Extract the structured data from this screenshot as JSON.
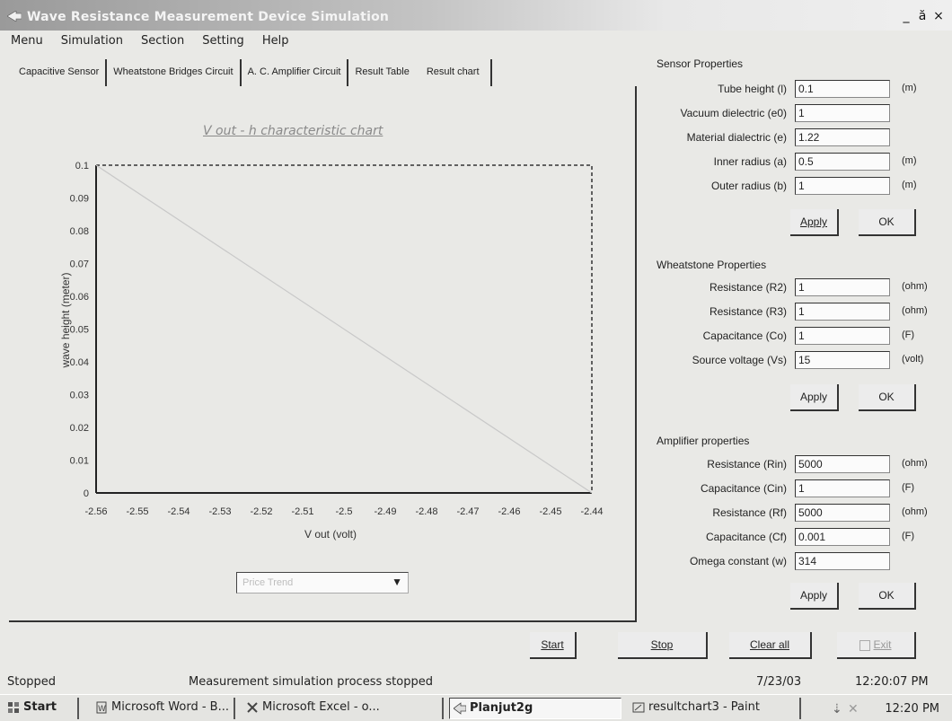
{
  "window": {
    "title": "Wave Resistance Measurement Device Simulation",
    "controls": [
      "_",
      "ă",
      "×"
    ]
  },
  "menu": [
    "Menu",
    "Simulation",
    "Section",
    "Setting",
    "Help"
  ],
  "tabs": [
    "Capacitive Sensor",
    "Wheatstone Bridges Circuit",
    "A. C. Amplifier Circuit",
    "Result Table",
    "Result chart"
  ],
  "chart_data": {
    "type": "line",
    "title": "V out - h characteristic chart",
    "xlabel": "V out (volt)",
    "ylabel": "wave height (meter)",
    "x_ticks": [
      "-2.56",
      "-2.55",
      "-2.54",
      "-2.53",
      "-2.52",
      "-2.51",
      "-2.5",
      "-2.49",
      "-2.48",
      "-2.47",
      "-2.46",
      "-2.45",
      "-2.44"
    ],
    "y_ticks": [
      "0.1",
      "0.09",
      "0.08",
      "0.07",
      "0.06",
      "0.05",
      "0.04",
      "0.03",
      "0.02",
      "0.01",
      "0"
    ],
    "xlim": [
      -2.56,
      -2.44
    ],
    "ylim": [
      0,
      0.1
    ],
    "series": [
      {
        "x": [
          -2.56,
          -2.44
        ],
        "y": [
          0.1,
          0.0
        ]
      }
    ],
    "line_color": "#c8c8c8"
  },
  "chart_dropdown": {
    "value": "Price Trend"
  },
  "sensor": {
    "title": "Sensor Properties",
    "rows": [
      {
        "label": "Tube height (l)",
        "value": "0.1",
        "unit": "(m)"
      },
      {
        "label": "Vacuum dielectric (e0)",
        "value": "1",
        "unit": ""
      },
      {
        "label": "Material dialectric (e)",
        "value": "1.22",
        "unit": ""
      },
      {
        "label": "Inner radius (a)",
        "value": "0.5",
        "unit": "(m)"
      },
      {
        "label": "Outer radius (b)",
        "value": "1",
        "unit": "(m)"
      }
    ],
    "apply": "Apply",
    "ok": "OK"
  },
  "wheatstone": {
    "title": "Wheatstone Properties",
    "rows": [
      {
        "label": "Resistance (R2)",
        "value": "1",
        "unit": "(ohm)"
      },
      {
        "label": "Resistance (R3)",
        "value": "1",
        "unit": "(ohm)"
      },
      {
        "label": "Capacitance (Co)",
        "value": "1",
        "unit": "(F)"
      },
      {
        "label": "Source voltage (Vs)",
        "value": "15",
        "unit": "(volt)"
      }
    ],
    "apply": "Apply",
    "ok": "OK"
  },
  "amplifier": {
    "title": "Amplifier properties",
    "rows": [
      {
        "label": "Resistance (Rin)",
        "value": "5000",
        "unit": "(ohm)"
      },
      {
        "label": "Capacitance (Cin)",
        "value": "1",
        "unit": "(F)"
      },
      {
        "label": "Resistance (Rf)",
        "value": "5000",
        "unit": "(ohm)"
      },
      {
        "label": "Capacitance (Cf)",
        "value": "0.001",
        "unit": "(F)"
      },
      {
        "label": "Omega constant (w)",
        "value": "314",
        "unit": ""
      }
    ],
    "apply": "Apply",
    "ok": "OK"
  },
  "actions": {
    "start": "Start",
    "stop": "Stop",
    "clear": "Clear all",
    "exit": "Exit"
  },
  "status": {
    "state": "Stopped",
    "message": "Measurement simulation process stopped",
    "date": "7/23/03",
    "time": "12:20:07 PM"
  },
  "taskbar": {
    "start": "Start",
    "items": [
      "Microsoft Word - B...",
      "Microsoft Excel - o...",
      "Planjut2g",
      "resultchart3 - Paint"
    ],
    "clock": "12:20 PM"
  }
}
